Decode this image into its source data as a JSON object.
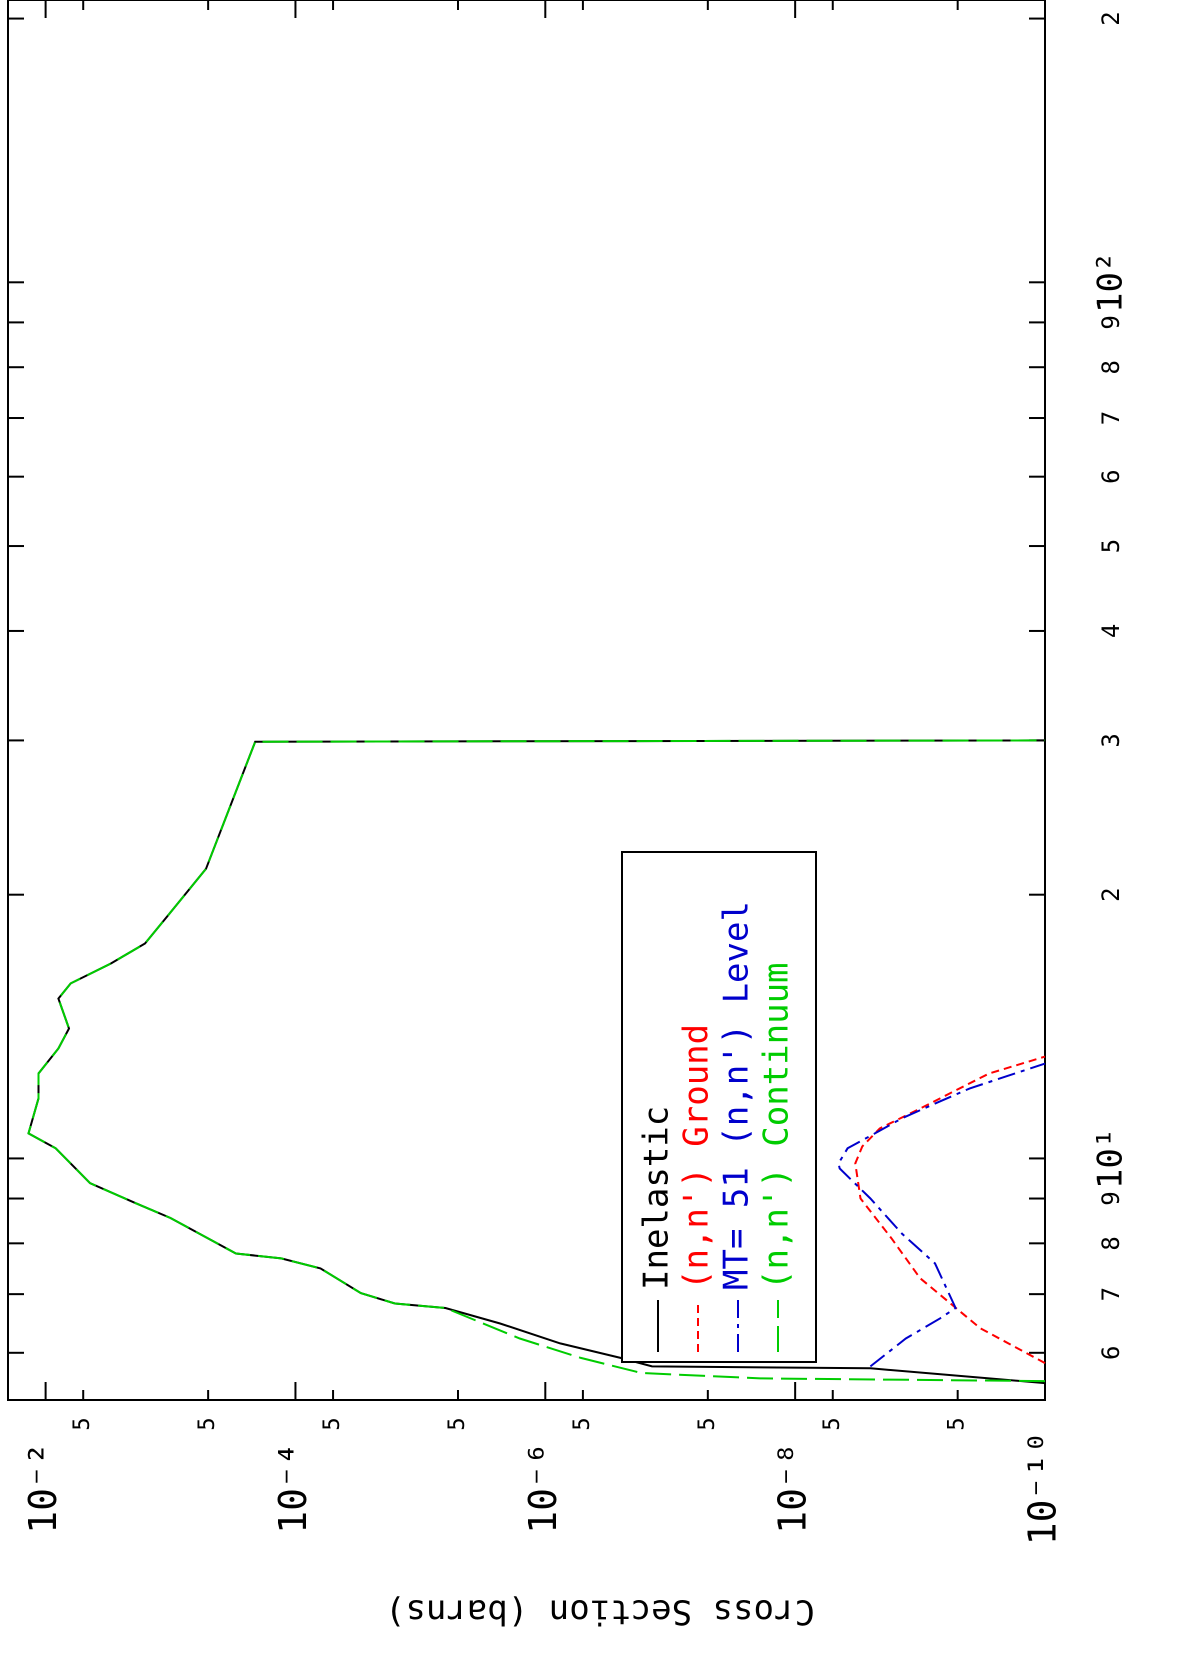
{
  "chart_data": {
    "type": "line",
    "y_label": "Cross Section (barns)",
    "log_x": true,
    "log_y": true,
    "xlim": [
      5.3,
      210
    ],
    "ylim": [
      1e-10,
      0.02
    ],
    "xticks": [
      6,
      7,
      8,
      9,
      {
        "value": 10,
        "label": "10¹"
      },
      {
        "value": 20,
        "label": "2"
      },
      {
        "value": 30,
        "label": "3"
      },
      {
        "value": 40,
        "label": "4"
      },
      {
        "value": 50,
        "label": "5"
      },
      {
        "value": 60,
        "label": "6"
      },
      {
        "value": 70,
        "label": "7"
      },
      {
        "value": 80,
        "label": "8"
      },
      {
        "value": 90,
        "label": "9"
      },
      {
        "value": 100,
        "label": "10²"
      },
      {
        "value": 200,
        "label": "2"
      }
    ],
    "yticks": [
      {
        "value": 0.01,
        "label": "10⁻²"
      },
      {
        "value": 0.005,
        "label": "5"
      },
      {
        "value": 0.0005,
        "label": "5"
      },
      {
        "value": 0.0001,
        "label": "10⁻⁴"
      },
      {
        "value": 5e-05,
        "label": "5"
      },
      {
        "value": 5e-06,
        "label": "5"
      },
      {
        "value": 1e-06,
        "label": "10⁻⁶"
      },
      {
        "value": 5e-07,
        "label": "5"
      },
      {
        "value": 5e-08,
        "label": "5"
      },
      {
        "value": 1e-08,
        "label": "10⁻⁸"
      },
      {
        "value": 5e-09,
        "label": "5"
      },
      {
        "value": 5e-10,
        "label": "5"
      },
      {
        "value": 1e-10,
        "label": "10⁻¹⁰"
      }
    ],
    "legend": "lower right",
    "series": [
      {
        "name": "Inelastic",
        "color": "#000000",
        "dash": "solid",
        "x": [
          5.54,
          5.76,
          5.79,
          5.92,
          6.15,
          6.48,
          6.75,
          6.83,
          7.02,
          7.49,
          7.69,
          7.79,
          8.55,
          8.89,
          9.37,
          10.27,
          10.68,
          11.71,
          12.5,
          13.35,
          14.07,
          15.22,
          15.84,
          16.69,
          17.59,
          18.78,
          21.41,
          29.9,
          30
        ],
        "values": [
          1e-10,
          2.5e-09,
          1.4e-07,
          2.5e-07,
          7.6e-07,
          2.3e-06,
          6.3e-06,
          1.6e-05,
          3e-05,
          6.3e-05,
          0.00013,
          0.0003,
          0.001,
          0.0019,
          0.0044,
          0.0083,
          0.0137,
          0.0114,
          0.0114,
          0.0079,
          0.0065,
          0.0079,
          0.0063,
          0.003,
          0.0016,
          0.0011,
          0.00052,
          0.00021,
          1e-10
        ]
      },
      {
        "name": "(n,n') Ground",
        "color": "#ff0000",
        "dash": "short",
        "x": [
          5.84,
          6.4,
          7.3,
          8.11,
          9.0,
          9.87,
          10.32,
          10.82,
          11.4,
          11.86,
          12.5,
          13.07
        ],
        "values": [
          1e-10,
          3.3e-10,
          1e-09,
          1.7e-09,
          3e-09,
          3.3e-09,
          2.9e-09,
          2.1e-09,
          1e-09,
          5.8e-10,
          2.8e-10,
          1e-10
        ]
      },
      {
        "name": "MT= 51 (n,n') Level",
        "color": "#0000cc",
        "dash": "dashdot",
        "x": [
          5.79,
          6.23,
          6.57,
          6.75,
          7.59,
          8.21,
          9.0,
          9.74,
          9.87,
          10.27,
          10.68,
          11.11,
          11.55,
          12.02,
          12.83
        ],
        "values": [
          2.5e-09,
          1.3e-09,
          6.9e-10,
          5.2e-10,
          7.6e-10,
          1.4e-09,
          2.5e-09,
          4.4e-09,
          4.5e-09,
          3.8e-09,
          2.3e-09,
          1.4e-09,
          7.6e-10,
          4e-10,
          1e-10
        ]
      },
      {
        "name": "(n,n') Continuum",
        "color": "#00cc00",
        "dash": "long",
        "x": [
          5.57,
          5.61,
          5.69,
          5.92,
          6.23,
          6.75,
          6.83,
          7.02,
          7.49,
          7.69,
          7.79,
          8.55,
          8.89,
          9.37,
          10.27,
          10.68,
          11.71,
          12.5,
          13.35,
          14.07,
          15.22,
          15.84,
          16.69,
          17.59,
          18.78,
          21.41,
          29.9,
          30
        ],
        "values": [
          1e-10,
          1.9e-08,
          1.7e-07,
          5.2e-07,
          1.6e-06,
          6.3e-06,
          1.6e-05,
          3e-05,
          6.3e-05,
          0.00013,
          0.0003,
          0.001,
          0.0019,
          0.0044,
          0.0083,
          0.0137,
          0.0114,
          0.0114,
          0.0079,
          0.0065,
          0.0079,
          0.0063,
          0.003,
          0.0016,
          0.0011,
          0.00052,
          0.00021,
          1e-10
        ]
      }
    ]
  }
}
